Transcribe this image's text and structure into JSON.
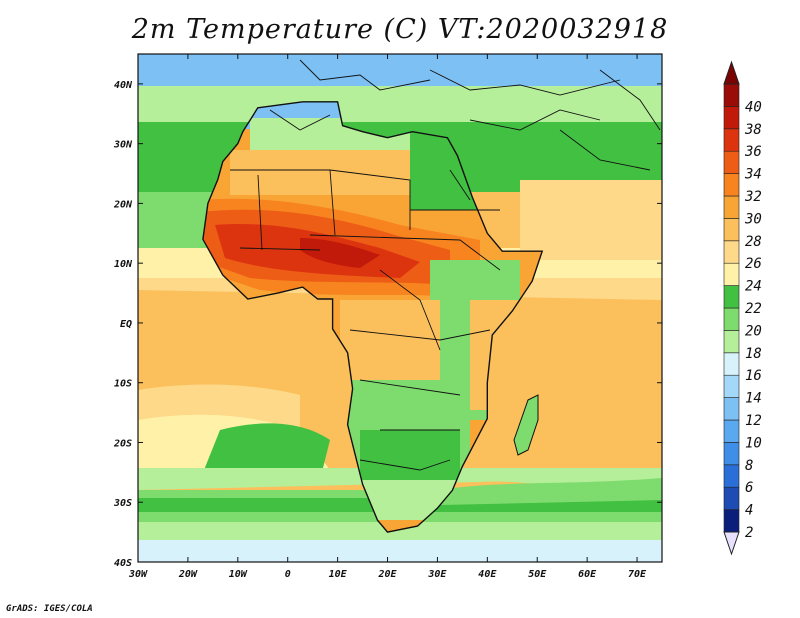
{
  "title": "2m Temperature (C) VT:2020032918",
  "footer": "GrADS: IGES/COLA",
  "map": {
    "lon_range": [
      -30,
      75
    ],
    "lat_range": [
      -40,
      45
    ],
    "lat_ticks": [
      {
        "value": 40,
        "label": "40N"
      },
      {
        "value": 30,
        "label": "30N"
      },
      {
        "value": 20,
        "label": "20N"
      },
      {
        "value": 10,
        "label": "10N"
      },
      {
        "value": 0,
        "label": "EQ"
      },
      {
        "value": -10,
        "label": "10S"
      },
      {
        "value": -20,
        "label": "20S"
      },
      {
        "value": -30,
        "label": "30S"
      },
      {
        "value": -40,
        "label": "40S"
      }
    ],
    "lon_ticks": [
      {
        "value": -30,
        "label": "30W"
      },
      {
        "value": -20,
        "label": "20W"
      },
      {
        "value": -10,
        "label": "10W"
      },
      {
        "value": 0,
        "label": "0"
      },
      {
        "value": 10,
        "label": "10E"
      },
      {
        "value": 20,
        "label": "20E"
      },
      {
        "value": 30,
        "label": "30E"
      },
      {
        "value": 40,
        "label": "40E"
      },
      {
        "value": 50,
        "label": "50E"
      },
      {
        "value": 60,
        "label": "60E"
      },
      {
        "value": 70,
        "label": "70E"
      }
    ]
  },
  "colorbar": {
    "levels": [
      "2",
      "4",
      "6",
      "8",
      "10",
      "12",
      "14",
      "16",
      "18",
      "20",
      "22",
      "24",
      "26",
      "28",
      "30",
      "32",
      "34",
      "36",
      "38",
      "40"
    ],
    "colors": [
      "#0c1e7c",
      "#1c4cb4",
      "#2a6fd8",
      "#3f8ee8",
      "#5aa8f0",
      "#7cc0f4",
      "#a4d8f8",
      "#d8f2fb",
      "#b6ef9a",
      "#7edc6e",
      "#42c042",
      "#fff2a8",
      "#fed98a",
      "#fbc05c",
      "#f9a536",
      "#f7841e",
      "#ee5d16",
      "#dd3410",
      "#c21a0a",
      "#9a0c08"
    ],
    "min_color": "#e8e0ff",
    "max_color": "#7a0404"
  }
}
